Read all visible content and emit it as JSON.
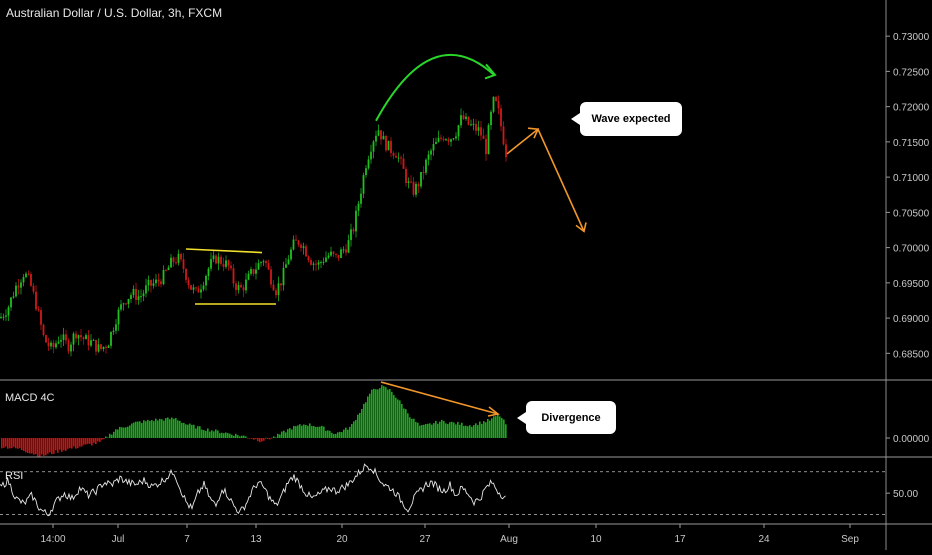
{
  "header": {
    "title": "Australian Dollar / U.S. Dollar, 3h, FXCM"
  },
  "colors": {
    "up": "#20c020",
    "down": "#d01818",
    "wick": "#cfcfcf",
    "axis": "#c8c8c8",
    "macd_up": "#1ea81e",
    "macd_down": "#c21515",
    "rsi": "#e6e6e6",
    "yellow": "#f2e12c",
    "green": "#29d629",
    "orange": "#f0962a"
  },
  "chart_data": [
    {
      "type": "candlestick",
      "title": "Australian Dollar / U.S. Dollar, 3h, FXCM",
      "ylim": [
        0.6815,
        0.733
      ],
      "y_ticks": [
        "0.73000",
        "0.72500",
        "0.72000",
        "0.71500",
        "0.71000",
        "0.70500",
        "0.70000",
        "0.69500",
        "0.69000",
        "0.68500"
      ],
      "x_ticks": [
        "14:00",
        "Jul",
        "7",
        "13",
        "20",
        "27",
        "Aug",
        "10",
        "17",
        "24",
        "Sep"
      ],
      "path": [
        [
          0,
          0.69
        ],
        [
          8,
          0.6915
        ],
        [
          16,
          0.6945
        ],
        [
          24,
          0.6965
        ],
        [
          30,
          0.695
        ],
        [
          36,
          0.692
        ],
        [
          44,
          0.687
        ],
        [
          52,
          0.6855
        ],
        [
          60,
          0.6875
        ],
        [
          68,
          0.686
        ],
        [
          76,
          0.688
        ],
        [
          84,
          0.687
        ],
        [
          92,
          0.6865
        ],
        [
          100,
          0.6855
        ],
        [
          108,
          0.6865
        ],
        [
          116,
          0.69
        ],
        [
          124,
          0.6925
        ],
        [
          132,
          0.6935
        ],
        [
          140,
          0.693
        ],
        [
          148,
          0.6945
        ],
        [
          156,
          0.695
        ],
        [
          164,
          0.696
        ],
        [
          172,
          0.698
        ],
        [
          178,
          0.6985
        ],
        [
          184,
          0.697
        ],
        [
          190,
          0.6945
        ],
        [
          196,
          0.6935
        ],
        [
          202,
          0.695
        ],
        [
          210,
          0.6975
        ],
        [
          216,
          0.6985
        ],
        [
          222,
          0.698
        ],
        [
          228,
          0.6975
        ],
        [
          234,
          0.695
        ],
        [
          240,
          0.694
        ],
        [
          246,
          0.695
        ],
        [
          252,
          0.6965
        ],
        [
          258,
          0.6975
        ],
        [
          264,
          0.6985
        ],
        [
          270,
          0.696
        ],
        [
          276,
          0.694
        ],
        [
          282,
          0.6955
        ],
        [
          288,
          0.6985
        ],
        [
          294,
          0.7005
        ],
        [
          300,
          0.701
        ],
        [
          306,
          0.6995
        ],
        [
          312,
          0.698
        ],
        [
          318,
          0.6975
        ],
        [
          324,
          0.6985
        ],
        [
          330,
          0.699
        ],
        [
          336,
          0.6985
        ],
        [
          342,
          0.6995
        ],
        [
          348,
          0.7005
        ],
        [
          354,
          0.703
        ],
        [
          360,
          0.7075
        ],
        [
          366,
          0.712
        ],
        [
          372,
          0.715
        ],
        [
          378,
          0.717
        ],
        [
          384,
          0.715
        ],
        [
          390,
          0.714
        ],
        [
          396,
          0.7135
        ],
        [
          402,
          0.7115
        ],
        [
          408,
          0.709
        ],
        [
          414,
          0.708
        ],
        [
          420,
          0.7095
        ],
        [
          426,
          0.712
        ],
        [
          432,
          0.714
        ],
        [
          438,
          0.715
        ],
        [
          444,
          0.716
        ],
        [
          450,
          0.7155
        ],
        [
          456,
          0.7165
        ],
        [
          462,
          0.7185
        ],
        [
          468,
          0.7175
        ],
        [
          474,
          0.717
        ],
        [
          480,
          0.7165
        ],
        [
          486,
          0.714
        ],
        [
          490,
          0.718
        ],
        [
          494,
          0.721
        ],
        [
          498,
          0.7195
        ],
        [
          502,
          0.7165
        ],
        [
          506,
          0.7135
        ]
      ],
      "annotations": [
        "Wave expected"
      ]
    },
    {
      "type": "bar",
      "title": "MACD 4C",
      "y_ticks": [
        "0.00000"
      ],
      "zero": 0,
      "path": [
        [
          0,
          -0.6
        ],
        [
          20,
          -0.8
        ],
        [
          40,
          -1.3
        ],
        [
          60,
          -0.9
        ],
        [
          80,
          -0.6
        ],
        [
          100,
          -0.3
        ],
        [
          115,
          0.6
        ],
        [
          135,
          1.1
        ],
        [
          155,
          1.3
        ],
        [
          175,
          1.4
        ],
        [
          185,
          1.0
        ],
        [
          200,
          0.7
        ],
        [
          215,
          0.5
        ],
        [
          230,
          0.3
        ],
        [
          245,
          0.1
        ],
        [
          260,
          -0.2
        ],
        [
          275,
          0.1
        ],
        [
          290,
          0.7
        ],
        [
          305,
          1.0
        ],
        [
          320,
          0.8
        ],
        [
          335,
          0.3
        ],
        [
          350,
          0.8
        ],
        [
          360,
          2.0
        ],
        [
          370,
          3.3
        ],
        [
          380,
          3.7
        ],
        [
          390,
          3.4
        ],
        [
          400,
          2.5
        ],
        [
          410,
          1.5
        ],
        [
          420,
          0.8
        ],
        [
          430,
          1.0
        ],
        [
          440,
          1.2
        ],
        [
          450,
          1.1
        ],
        [
          460,
          1.0
        ],
        [
          470,
          0.9
        ],
        [
          480,
          1.1
        ],
        [
          490,
          1.3
        ],
        [
          498,
          1.7
        ],
        [
          506,
          0.9
        ]
      ],
      "annotations": [
        "Divergence"
      ]
    },
    {
      "type": "line",
      "title": "RSI",
      "y_ticks": [
        "50.00"
      ],
      "ylim": [
        25,
        80
      ],
      "bands": [
        70,
        30
      ],
      "path": [
        [
          0,
          55
        ],
        [
          8,
          62
        ],
        [
          16,
          45
        ],
        [
          24,
          40
        ],
        [
          32,
          48
        ],
        [
          40,
          35
        ],
        [
          48,
          30
        ],
        [
          56,
          42
        ],
        [
          64,
          50
        ],
        [
          72,
          45
        ],
        [
          80,
          55
        ],
        [
          88,
          48
        ],
        [
          96,
          52
        ],
        [
          104,
          60
        ],
        [
          112,
          58
        ],
        [
          120,
          64
        ],
        [
          128,
          60
        ],
        [
          136,
          58
        ],
        [
          144,
          62
        ],
        [
          152,
          56
        ],
        [
          160,
          60
        ],
        [
          168,
          66
        ],
        [
          174,
          70
        ],
        [
          180,
          55
        ],
        [
          186,
          42
        ],
        [
          192,
          35
        ],
        [
          198,
          50
        ],
        [
          204,
          58
        ],
        [
          210,
          45
        ],
        [
          216,
          38
        ],
        [
          222,
          55
        ],
        [
          228,
          48
        ],
        [
          234,
          38
        ],
        [
          240,
          32
        ],
        [
          246,
          40
        ],
        [
          252,
          52
        ],
        [
          258,
          60
        ],
        [
          264,
          55
        ],
        [
          270,
          45
        ],
        [
          276,
          38
        ],
        [
          282,
          48
        ],
        [
          288,
          60
        ],
        [
          294,
          66
        ],
        [
          300,
          58
        ],
        [
          306,
          50
        ],
        [
          312,
          45
        ],
        [
          318,
          48
        ],
        [
          324,
          52
        ],
        [
          330,
          55
        ],
        [
          336,
          52
        ],
        [
          342,
          55
        ],
        [
          348,
          58
        ],
        [
          354,
          64
        ],
        [
          360,
          70
        ],
        [
          366,
          76
        ],
        [
          372,
          74
        ],
        [
          378,
          65
        ],
        [
          384,
          58
        ],
        [
          390,
          55
        ],
        [
          396,
          50
        ],
        [
          402,
          42
        ],
        [
          408,
          35
        ],
        [
          414,
          45
        ],
        [
          420,
          52
        ],
        [
          426,
          58
        ],
        [
          432,
          60
        ],
        [
          438,
          55
        ],
        [
          444,
          52
        ],
        [
          450,
          58
        ],
        [
          456,
          48
        ],
        [
          462,
          55
        ],
        [
          468,
          50
        ],
        [
          474,
          42
        ],
        [
          480,
          45
        ],
        [
          486,
          55
        ],
        [
          492,
          60
        ],
        [
          498,
          52
        ],
        [
          506,
          45
        ]
      ]
    }
  ]
}
